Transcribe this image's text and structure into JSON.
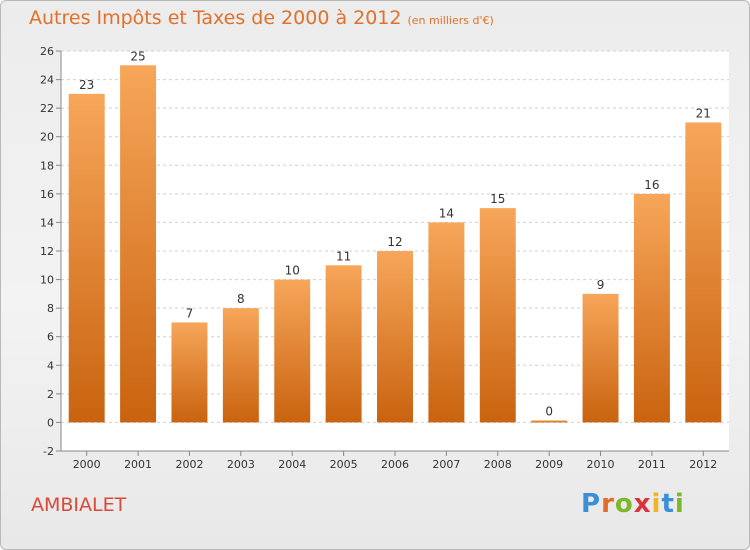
{
  "header": {
    "title": "Autres Impôts et Taxes de 2000 à 2012",
    "unit": "(en milliers d'€)"
  },
  "footer": {
    "commune": "AMBIALET",
    "logo": {
      "letters": [
        "P",
        "r",
        "o",
        "x",
        "i",
        "t",
        "i"
      ],
      "colors": [
        "#3a8fd6",
        "#e36b2b",
        "#7bb82c",
        "#d8343a",
        "#f0b323",
        "#3a8fd6",
        "#7bb82c"
      ]
    }
  },
  "chart_data": {
    "type": "bar",
    "title": "Autres Impôts et Taxes de 2000 à 2012",
    "subtitle": "(en milliers d'€)",
    "categories": [
      "2000",
      "2001",
      "2002",
      "2003",
      "2004",
      "2005",
      "2006",
      "2007",
      "2008",
      "2009",
      "2010",
      "2011",
      "2012"
    ],
    "values": [
      23,
      25,
      7,
      8,
      10,
      11,
      12,
      14,
      15,
      0,
      9,
      16,
      21
    ],
    "value_labels": [
      "23",
      "25",
      "7",
      "8",
      "10",
      "11",
      "12",
      "14",
      "15",
      "0",
      "9",
      "16",
      "21"
    ],
    "ylim": [
      -2,
      26
    ],
    "yticks": [
      -2,
      0,
      2,
      4,
      6,
      8,
      10,
      12,
      14,
      16,
      18,
      20,
      22,
      24,
      26
    ],
    "ytick_labels": [
      "-2",
      "0",
      "2",
      "4",
      "6",
      "8",
      "10",
      "12",
      "14",
      "16",
      "18",
      "20",
      "22",
      "24",
      "26"
    ],
    "grid": true,
    "bar_color_top": "#f7a65a",
    "bar_color_bottom": "#c9630f"
  }
}
